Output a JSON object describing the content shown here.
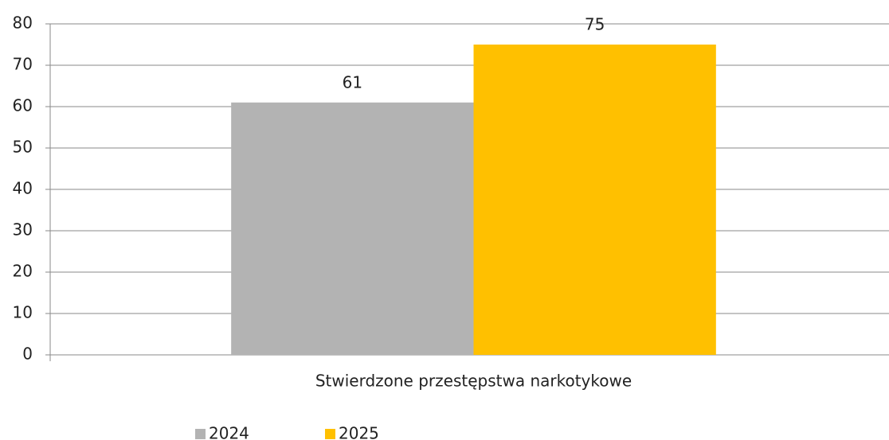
{
  "chart_data": {
    "type": "bar",
    "categories": [
      "Stwierdzone przestępstwa narkotykowe"
    ],
    "series": [
      {
        "name": "2024",
        "color": "#b3b3b3",
        "values": [
          61
        ]
      },
      {
        "name": "2025",
        "color": "#ffc000",
        "values": [
          75
        ]
      }
    ],
    "ylim": [
      0,
      80
    ],
    "yticks": [
      0,
      10,
      20,
      30,
      40,
      50,
      60,
      70,
      80
    ],
    "grid": true,
    "legend": "bottom"
  }
}
